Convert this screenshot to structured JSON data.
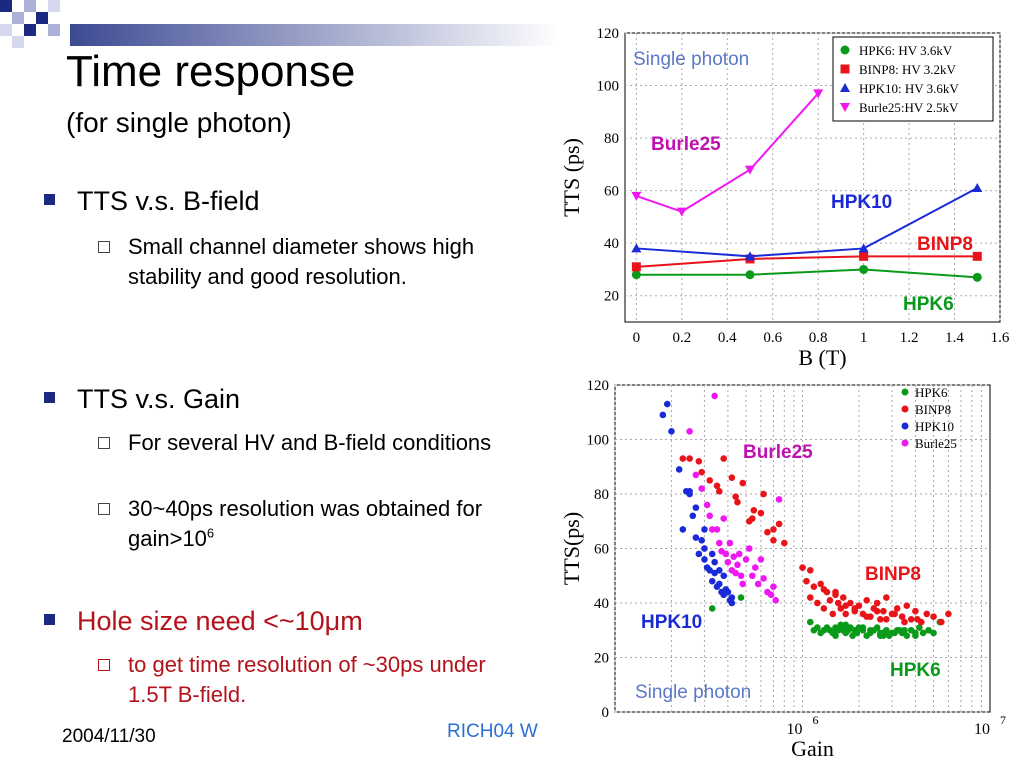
{
  "slide": {
    "title": "Time response",
    "subtitle": "(for single photon)",
    "bullets": [
      {
        "text": "TTS v.s. B-field",
        "sub": [
          "Small channel diameter shows high stability and good resolution."
        ]
      },
      {
        "text": "TTS v.s. Gain",
        "sub": [
          "For several HV and B-field conditions",
          "30~40ps resolution was obtained for gain>10"
        ],
        "sup": "6"
      },
      {
        "text": "Hole size need <~10μm",
        "sub": [
          "to get time resolution of ~30ps under 1.5T B-field."
        ]
      }
    ],
    "footer": {
      "date": "2004/11/30",
      "conference": "RICH04 W"
    },
    "colors": {
      "accent": "#1b2a80",
      "highlight": "#b4121b",
      "link": "#2a6fd6"
    }
  },
  "chart_data": [
    {
      "type": "line",
      "xlabel": "B (T)",
      "ylabel": "TTS (ps)",
      "xlim": [
        -0.05,
        1.6
      ],
      "ylim": [
        10,
        120
      ],
      "xticks": [
        0,
        0.2,
        0.4,
        0.6,
        0.8,
        1,
        1.2,
        1.4,
        1.6
      ],
      "yticks": [
        20,
        40,
        60,
        80,
        100,
        120
      ],
      "grid": true,
      "legend_position": "top-right",
      "annotation": "Single photon",
      "series": [
        {
          "name": "HPK6:   HV 3.6kV",
          "label": "HPK6",
          "color": "#0a9a1a",
          "marker": "circle",
          "x": [
            0,
            0.5,
            1,
            1.5
          ],
          "y": [
            28,
            28,
            30,
            27
          ]
        },
        {
          "name": "BINP8:  HV 3.2kV",
          "label": "BINP8",
          "color": "#e8141a",
          "marker": "square",
          "x": [
            0,
            0.5,
            1,
            1.5
          ],
          "y": [
            31,
            34,
            35,
            35
          ]
        },
        {
          "name": "HPK10: HV 3.6kV",
          "label": "HPK10",
          "color": "#1a2ad6",
          "marker": "triangle-up",
          "x": [
            0,
            0.5,
            1,
            1.5
          ],
          "y": [
            38,
            35,
            38,
            61
          ]
        },
        {
          "name": "Burle25:HV 2.5kV",
          "label": "Burle25",
          "color": "#f018f0",
          "marker": "triangle-down",
          "x": [
            0,
            0.2,
            0.5,
            0.8
          ],
          "y": [
            58,
            52,
            68,
            97
          ]
        }
      ]
    },
    {
      "type": "scatter",
      "xlabel": "Gain",
      "ylabel": "TTS(ps)",
      "x_scale": "log",
      "xlim": [
        100000,
        10000000
      ],
      "ylim": [
        0,
        120
      ],
      "xtick_labels": [
        "10^6",
        "10^7"
      ],
      "yticks": [
        0,
        20,
        40,
        60,
        80,
        100,
        120
      ],
      "grid": true,
      "legend_position": "top-right",
      "annotation": "Single photon",
      "series": [
        {
          "name": "HPK6",
          "color": "#0a9a1a",
          "x": [
            330000,
            470000,
            1100000,
            1200000,
            1250000,
            1300000,
            1350000,
            1400000,
            1450000,
            1500000,
            1550000,
            1600000,
            1650000,
            1700000,
            1750000,
            1800000,
            1850000,
            1900000,
            1950000,
            2000000,
            2100000,
            2200000,
            2300000,
            2400000,
            2500000,
            2600000,
            2700000,
            2800000,
            2900000,
            3000000,
            3200000,
            3400000,
            3600000,
            3800000,
            4000000,
            4200000,
            4400000,
            4700000,
            5000000,
            5400000,
            1150000,
            1500000,
            1900000,
            2300000,
            2700000,
            3100000,
            3500000,
            4000000,
            1700000,
            2100000,
            2600000,
            3300000
          ],
          "y": [
            38,
            42,
            33,
            31,
            29,
            30,
            31,
            30,
            29,
            31,
            30,
            32,
            30,
            29,
            30,
            31,
            28,
            30,
            29,
            31,
            30,
            28,
            29,
            30,
            31,
            28,
            29,
            30,
            28,
            29,
            30,
            29,
            28,
            30,
            29,
            31,
            29,
            30,
            29,
            33,
            30,
            28,
            29,
            30,
            28,
            29,
            30,
            28,
            32,
            31,
            29,
            30
          ]
        },
        {
          "name": "BINP8",
          "color": "#e8141a",
          "x": [
            230000,
            250000,
            290000,
            320000,
            350000,
            380000,
            420000,
            450000,
            480000,
            520000,
            550000,
            600000,
            650000,
            700000,
            750000,
            800000,
            1000000,
            1050000,
            1100000,
            1150000,
            1200000,
            1250000,
            1300000,
            1350000,
            1400000,
            1450000,
            1500000,
            1550000,
            1600000,
            1650000,
            1700000,
            1800000,
            1900000,
            2000000,
            2100000,
            2200000,
            2300000,
            2400000,
            2500000,
            2600000,
            2700000,
            2800000,
            3000000,
            3200000,
            3400000,
            3600000,
            3800000,
            4000000,
            4300000,
            4600000,
            5000000,
            5500000,
            6000000,
            280000,
            360000,
            440000,
            540000,
            620000,
            700000,
            1100000,
            1300000,
            1500000,
            1700000,
            1900000,
            2200000,
            2500000,
            2800000,
            3100000,
            3500000,
            4100000
          ],
          "y": [
            93,
            93,
            88,
            85,
            83,
            93,
            86,
            77,
            84,
            70,
            74,
            73,
            66,
            63,
            69,
            62,
            53,
            48,
            42,
            46,
            40,
            47,
            38,
            44,
            41,
            36,
            44,
            40,
            38,
            42,
            36,
            40,
            37,
            39,
            36,
            41,
            35,
            38,
            40,
            34,
            37,
            42,
            36,
            38,
            35,
            39,
            34,
            37,
            33,
            36,
            35,
            33,
            36,
            92,
            81,
            79,
            71,
            80,
            67,
            52,
            45,
            43,
            39,
            38,
            35,
            37,
            34,
            36,
            33,
            34
          ]
        },
        {
          "name": "HPK10",
          "color": "#1a2ad6",
          "x": [
            180000,
            190000,
            200000,
            220000,
            230000,
            240000,
            250000,
            260000,
            270000,
            280000,
            290000,
            300000,
            310000,
            320000,
            330000,
            340000,
            350000,
            360000,
            370000,
            380000,
            390000,
            400000,
            410000,
            420000,
            250000,
            270000,
            300000,
            340000,
            380000,
            420000,
            300000,
            330000,
            360000
          ],
          "y": [
            109,
            113,
            103,
            89,
            67,
            81,
            81,
            72,
            64,
            58,
            63,
            56,
            53,
            52,
            48,
            51,
            46,
            47,
            44,
            43,
            45,
            44,
            41,
            40,
            80,
            75,
            60,
            55,
            50,
            42,
            67,
            58,
            52
          ]
        },
        {
          "name": "Burle25",
          "color": "#f018f0",
          "x": [
            250000,
            270000,
            290000,
            310000,
            320000,
            330000,
            340000,
            350000,
            360000,
            370000,
            380000,
            390000,
            400000,
            410000,
            420000,
            430000,
            440000,
            450000,
            460000,
            470000,
            480000,
            500000,
            520000,
            540000,
            560000,
            580000,
            600000,
            620000,
            650000,
            680000,
            700000,
            720000,
            750000
          ],
          "y": [
            103,
            87,
            82,
            76,
            72,
            67,
            116,
            67,
            62,
            59,
            71,
            58,
            55,
            62,
            52,
            57,
            51,
            54,
            58,
            50,
            47,
            56,
            60,
            50,
            53,
            47,
            56,
            49,
            44,
            43,
            46,
            41,
            78
          ]
        }
      ]
    }
  ]
}
